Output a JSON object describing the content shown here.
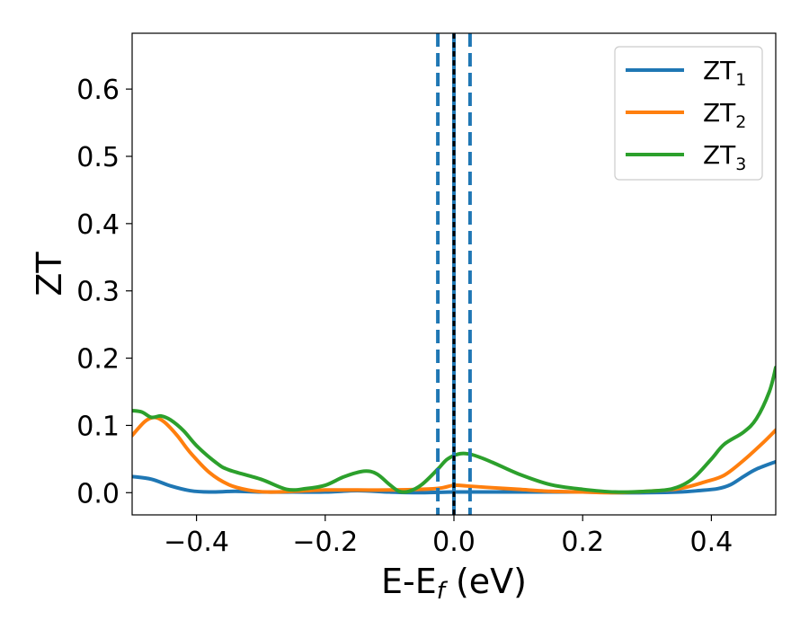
{
  "chart_data": {
    "type": "line",
    "xlabel": "E-E",
    "xlabel_sub": "f",
    "xlabel_unit": " (eV)",
    "ylabel": "ZT",
    "xlim": [
      -0.5,
      0.5
    ],
    "ylim": [
      -0.033,
      0.683
    ],
    "x_ticks": [
      -0.4,
      -0.2,
      0.0,
      0.2,
      0.4
    ],
    "x_tick_labels": [
      "−0.4",
      "−0.2",
      "0.0",
      "0.2",
      "0.4"
    ],
    "y_ticks": [
      0.0,
      0.1,
      0.2,
      0.3,
      0.4,
      0.5,
      0.6
    ],
    "y_tick_labels": [
      "0.0",
      "0.1",
      "0.2",
      "0.3",
      "0.4",
      "0.5",
      "0.6"
    ],
    "grid": false,
    "legend_position": "top-right",
    "vertical_lines": [
      {
        "x": -0.025,
        "color": "#1f77b4",
        "style": "dashed"
      },
      {
        "x": 0.0,
        "color": "#1f77b4",
        "style": "solid"
      },
      {
        "x": 0.0,
        "color": "#000000",
        "style": "dashed"
      },
      {
        "x": 0.025,
        "color": "#1f77b4",
        "style": "dashed"
      }
    ],
    "series": [
      {
        "name": "ZT",
        "sub": "1",
        "color": "#1f77b4",
        "points": [
          [
            -0.5,
            0.024
          ],
          [
            -0.47,
            0.02
          ],
          [
            -0.44,
            0.01
          ],
          [
            -0.41,
            0.003
          ],
          [
            -0.38,
            0.001
          ],
          [
            -0.34,
            0.002
          ],
          [
            -0.3,
            0.001
          ],
          [
            -0.25,
            0.001
          ],
          [
            -0.2,
            0.001
          ],
          [
            -0.15,
            0.003
          ],
          [
            -0.1,
            0.001
          ],
          [
            -0.05,
            0.0
          ],
          [
            0.0,
            0.001
          ],
          [
            0.05,
            0.001
          ],
          [
            0.1,
            0.001
          ],
          [
            0.15,
            0.001
          ],
          [
            0.2,
            0.001
          ],
          [
            0.25,
            0.0
          ],
          [
            0.3,
            0.0
          ],
          [
            0.35,
            0.001
          ],
          [
            0.38,
            0.003
          ],
          [
            0.41,
            0.006
          ],
          [
            0.43,
            0.012
          ],
          [
            0.45,
            0.024
          ],
          [
            0.47,
            0.035
          ],
          [
            0.5,
            0.046
          ]
        ]
      },
      {
        "name": "ZT",
        "sub": "2",
        "color": "#ff7f0e",
        "points": [
          [
            -0.5,
            0.085
          ],
          [
            -0.48,
            0.106
          ],
          [
            -0.465,
            0.112
          ],
          [
            -0.45,
            0.105
          ],
          [
            -0.43,
            0.085
          ],
          [
            -0.41,
            0.06
          ],
          [
            -0.38,
            0.03
          ],
          [
            -0.35,
            0.012
          ],
          [
            -0.32,
            0.004
          ],
          [
            -0.29,
            0.001
          ],
          [
            -0.25,
            0.002
          ],
          [
            -0.2,
            0.004
          ],
          [
            -0.15,
            0.004
          ],
          [
            -0.1,
            0.004
          ],
          [
            -0.05,
            0.005
          ],
          [
            -0.02,
            0.007
          ],
          [
            0.0,
            0.011
          ],
          [
            0.02,
            0.01
          ],
          [
            0.05,
            0.008
          ],
          [
            0.1,
            0.005
          ],
          [
            0.15,
            0.002
          ],
          [
            0.2,
            0.001
          ],
          [
            0.25,
            0.0
          ],
          [
            0.3,
            0.002
          ],
          [
            0.35,
            0.006
          ],
          [
            0.39,
            0.016
          ],
          [
            0.42,
            0.026
          ],
          [
            0.45,
            0.048
          ],
          [
            0.48,
            0.074
          ],
          [
            0.5,
            0.093
          ]
        ]
      },
      {
        "name": "ZT",
        "sub": "3",
        "color": "#2ca02c",
        "points": [
          [
            -0.5,
            0.122
          ],
          [
            -0.485,
            0.12
          ],
          [
            -0.47,
            0.112
          ],
          [
            -0.455,
            0.114
          ],
          [
            -0.44,
            0.108
          ],
          [
            -0.42,
            0.092
          ],
          [
            -0.4,
            0.07
          ],
          [
            -0.37,
            0.045
          ],
          [
            -0.35,
            0.034
          ],
          [
            -0.3,
            0.02
          ],
          [
            -0.26,
            0.005
          ],
          [
            -0.23,
            0.006
          ],
          [
            -0.2,
            0.011
          ],
          [
            -0.17,
            0.024
          ],
          [
            -0.14,
            0.032
          ],
          [
            -0.12,
            0.028
          ],
          [
            -0.1,
            0.012
          ],
          [
            -0.085,
            0.002
          ],
          [
            -0.07,
            0.002
          ],
          [
            -0.05,
            0.012
          ],
          [
            -0.025,
            0.035
          ],
          [
            -0.01,
            0.05
          ],
          [
            0.01,
            0.058
          ],
          [
            0.03,
            0.056
          ],
          [
            0.06,
            0.045
          ],
          [
            0.1,
            0.028
          ],
          [
            0.15,
            0.012
          ],
          [
            0.2,
            0.005
          ],
          [
            0.25,
            0.001
          ],
          [
            0.3,
            0.002
          ],
          [
            0.34,
            0.006
          ],
          [
            0.37,
            0.02
          ],
          [
            0.4,
            0.05
          ],
          [
            0.42,
            0.072
          ],
          [
            0.45,
            0.09
          ],
          [
            0.47,
            0.11
          ],
          [
            0.49,
            0.15
          ],
          [
            0.5,
            0.186
          ]
        ]
      }
    ]
  }
}
